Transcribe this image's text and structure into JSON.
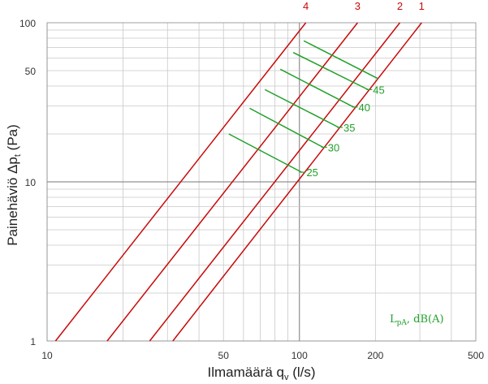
{
  "colors": {
    "line": "#c80a0a",
    "sound": "#22a02a",
    "grid": "#c8c8c8",
    "axis": "#777777"
  },
  "chart_data": {
    "type": "line",
    "xscale": "log",
    "yscale": "log",
    "xlim": [
      10,
      500
    ],
    "ylim": [
      1,
      100
    ],
    "xlabel": "Ilmamäärä q",
    "xlabel_sub": "v",
    "xlabel_unit": " (l/s)",
    "ylabel": "Painehäviö Δp",
    "ylabel_sub": "t",
    "ylabel_unit": " (Pa)",
    "x_ticks": [
      {
        "value": 10,
        "label": "10"
      },
      {
        "value": 50,
        "label": "50"
      },
      {
        "value": 100,
        "label": "100"
      },
      {
        "value": 200,
        "label": "200"
      },
      {
        "value": 500,
        "label": "500"
      }
    ],
    "y_ticks": [
      {
        "value": 1,
        "label": "1"
      },
      {
        "value": 10,
        "label": "10"
      },
      {
        "value": 50,
        "label": "50"
      },
      {
        "value": 100,
        "label": "100"
      }
    ],
    "series": [
      {
        "name": "4",
        "x": [
          10.8,
          106
        ],
        "y": [
          1,
          100
        ]
      },
      {
        "name": "3",
        "x": [
          17.3,
          170
        ],
        "y": [
          1,
          100
        ]
      },
      {
        "name": "2",
        "x": [
          25.5,
          250
        ],
        "y": [
          1,
          100
        ]
      },
      {
        "name": "1",
        "x": [
          31.5,
          305
        ],
        "y": [
          1,
          100
        ]
      }
    ],
    "sound_lines": [
      {
        "label": "25",
        "x": [
          52.5,
          102
        ],
        "y": [
          20,
          11.5
        ]
      },
      {
        "label": "30",
        "x": [
          63.5,
          124
        ],
        "y": [
          29,
          16.5
        ]
      },
      {
        "label": "35",
        "x": [
          73,
          143
        ],
        "y": [
          38,
          22
        ]
      },
      {
        "label": "40",
        "x": [
          84,
          164
        ],
        "y": [
          51,
          29.5
        ]
      },
      {
        "label": "45",
        "x": [
          94.5,
          187
        ],
        "y": [
          65,
          38
        ]
      },
      {
        "label": "",
        "x": [
          104,
          205
        ],
        "y": [
          77,
          44.5
        ]
      }
    ],
    "legend_note": {
      "main": "L",
      "sub": "pA",
      "rest": ", dB(A)"
    }
  }
}
